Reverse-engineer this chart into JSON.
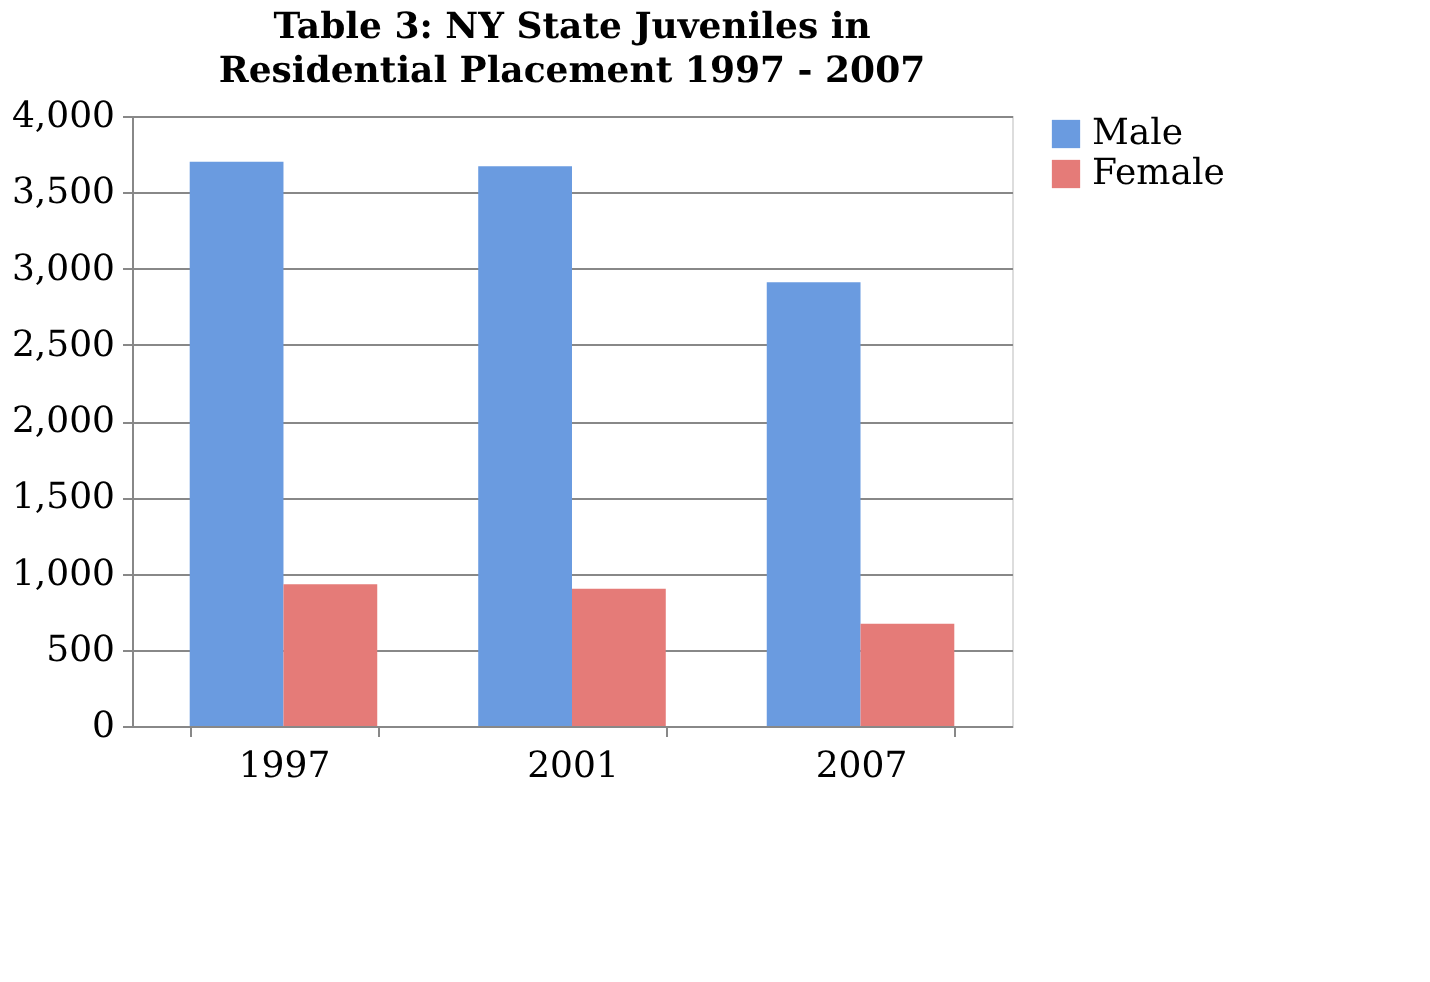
{
  "chart_data": {
    "type": "bar",
    "title": "Table 3: NY State Juveniles in Residential Placement 1997 - 2007",
    "categories": [
      "1997",
      "2001",
      "2007"
    ],
    "series": [
      {
        "name": "Male",
        "color": "#6a9be0",
        "values": [
          3700,
          3670,
          2910
        ]
      },
      {
        "name": "Female",
        "color": "#e57b78",
        "values": [
          930,
          900,
          670
        ]
      }
    ],
    "ylim": [
      0,
      4000
    ],
    "yticks": [
      0,
      500,
      {
        "value": 1000,
        "label": "1,000"
      },
      {
        "value": 1500,
        "label": "1,500"
      },
      {
        "value": 2000,
        "label": "2,000"
      },
      {
        "value": 2500,
        "label": "2,500"
      },
      {
        "value": 3000,
        "label": "3,000"
      },
      {
        "value": 3500,
        "label": "3,500"
      },
      {
        "value": 4000,
        "label": "4,000"
      }
    ],
    "grid": "y",
    "legend": "right"
  }
}
